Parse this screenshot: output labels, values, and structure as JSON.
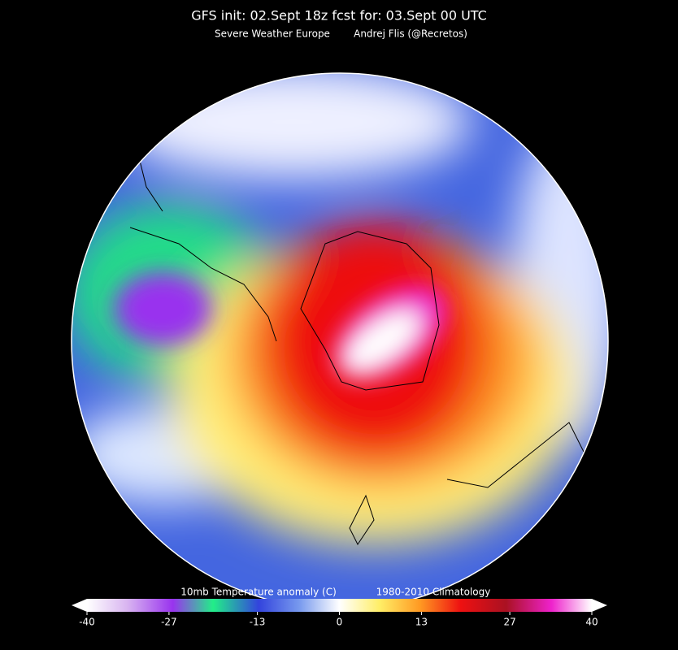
{
  "header": {
    "title": "GFS init: 02.Sept 18z  fcst for: 03.Sept  00 UTC",
    "credits": [
      "Severe Weather Europe",
      "Andrej Flis (@Recretos)"
    ]
  },
  "colorbar": {
    "label": "10mb Temperature anomaly (C)",
    "climatology": "1980-2010 Climatology",
    "range": [
      -40,
      40
    ],
    "ticks": [
      -40,
      -27,
      -13,
      0,
      13,
      27,
      40
    ]
  }
}
